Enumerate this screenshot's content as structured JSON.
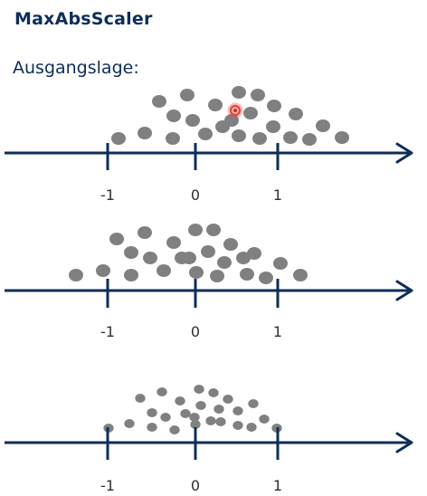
{
  "title": "MaxAbsScaler",
  "subtitle": "Ausgangslage:",
  "colors": {
    "title": "#0e2d5a",
    "axis": "#0e2d5a",
    "dot": "#808080",
    "cursor_ring": "#e8453c",
    "tick_text": "#2f2f2f"
  },
  "number_lines": [
    {
      "name": "original",
      "tick_values": [
        -1,
        0,
        1
      ],
      "tick_labels": [
        "-1",
        "0",
        "1"
      ]
    },
    {
      "name": "centered",
      "tick_values": [
        -1,
        0,
        1
      ],
      "tick_labels": [
        "-1",
        "0",
        "1"
      ]
    },
    {
      "name": "scaled",
      "tick_values": [
        -1,
        0,
        1
      ],
      "tick_labels": [
        "-1",
        "0",
        "1"
      ]
    }
  ],
  "cursor": {
    "icon": "cursor-highlight-icon"
  }
}
